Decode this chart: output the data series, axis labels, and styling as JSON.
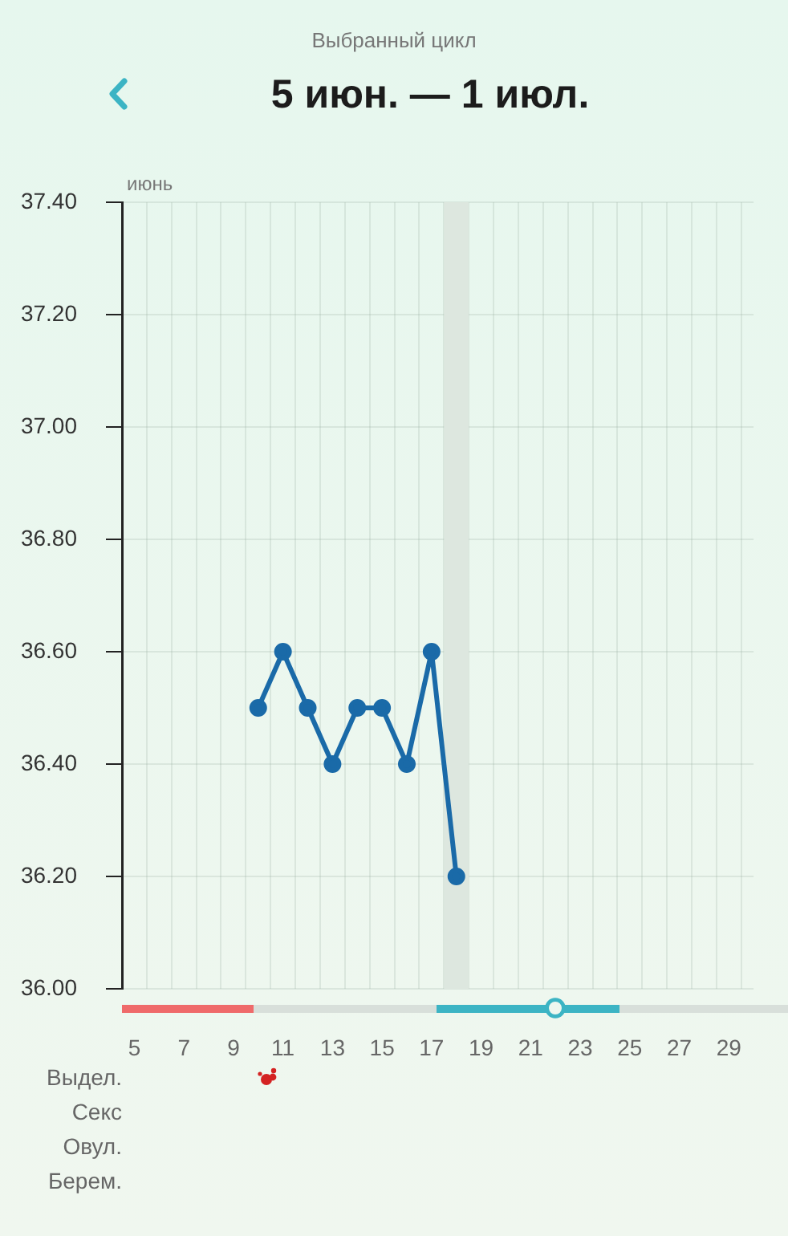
{
  "chart_data": {
    "type": "line",
    "title": "5 июн. — 1 июл.",
    "subtitle": "Выбранный цикл",
    "xlabel": "июнь",
    "x": [
      10,
      11,
      12,
      13,
      14,
      15,
      16,
      17,
      18
    ],
    "series": [
      {
        "color": "#1a6aa8",
        "values": [
          36.5,
          36.6,
          36.5,
          36.4,
          36.5,
          36.5,
          36.4,
          36.6,
          36.2
        ]
      }
    ],
    "xlim": [
      4.5,
      30
    ],
    "xticks": [
      5,
      {
        "value": 5.5,
        "label": null
      },
      {
        "value": 6.5,
        "label": null
      },
      7,
      {
        "value": 7.5,
        "label": null
      },
      {
        "value": 8.5,
        "label": null
      },
      9,
      {
        "value": 9.5,
        "label": null
      },
      {
        "value": 10.5,
        "label": null
      },
      11,
      {
        "value": 11.5,
        "label": null
      },
      {
        "value": 12.5,
        "label": null
      },
      13,
      {
        "value": 13.5,
        "label": null
      },
      {
        "value": 14.5,
        "label": null
      },
      15,
      {
        "value": 15.5,
        "label": null
      },
      {
        "value": 16.5,
        "label": null
      },
      17,
      {
        "value": 17.5,
        "label": null
      },
      {
        "value": 18.5,
        "label": null
      },
      19,
      {
        "value": 19.5,
        "label": null
      },
      {
        "value": 20.5,
        "label": null
      },
      21,
      {
        "value": 21.5,
        "label": null
      },
      {
        "value": 22.5,
        "label": null
      },
      23,
      {
        "value": 23.5,
        "label": null
      },
      {
        "value": 24.5,
        "label": null
      },
      25,
      {
        "value": 25.5,
        "label": null
      },
      {
        "value": 26.5,
        "label": null
      },
      27,
      {
        "value": 27.5,
        "label": null
      },
      {
        "value": 28.5,
        "label": null
      },
      29,
      {
        "value": 29.5,
        "label": null
      }
    ],
    "ylim": [
      36,
      37.4
    ],
    "yticks": [
      {
        "value": 36,
        "label": "36.00"
      },
      {
        "value": 36.2,
        "label": "36.20"
      },
      {
        "value": 36.4,
        "label": "36.40"
      },
      {
        "value": 36.6,
        "label": "36.60"
      },
      {
        "value": 36.8,
        "label": "36.80"
      },
      {
        "value": 37,
        "label": "37.00"
      },
      {
        "value": 37.2,
        "label": "37.20"
      },
      {
        "value": 37.4,
        "label": "37.40"
      }
    ],
    "grid": true,
    "marker": "circle",
    "line_style": "solid",
    "bands": [
      {
        "axis": "x",
        "from": 17.5,
        "to": 18.5,
        "color": "#dde7df"
      }
    ],
    "annotations": [
      "Выдел.",
      "Секс",
      "Овул.",
      "Берем."
    ]
  }
}
